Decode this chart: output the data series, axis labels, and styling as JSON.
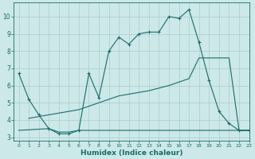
{
  "xlabel": "Humidex (Indice chaleur)",
  "xlim": [
    -0.5,
    23
  ],
  "ylim": [
    2.8,
    10.8
  ],
  "bg_color": "#cce8e8",
  "grid_color": "#aacccc",
  "line_color": "#1a6b6b",
  "line1_x": [
    0,
    1,
    2,
    3,
    4,
    5,
    6,
    7,
    8,
    9,
    10,
    11,
    12,
    13,
    14,
    15,
    16,
    17,
    18,
    19,
    20,
    21,
    22,
    23
  ],
  "line1_y": [
    6.7,
    5.2,
    4.3,
    3.5,
    3.2,
    3.2,
    3.4,
    6.7,
    5.3,
    8.0,
    8.8,
    8.4,
    9.0,
    9.1,
    9.1,
    10.0,
    9.9,
    10.4,
    8.5,
    6.3,
    4.5,
    3.8,
    3.4,
    3.4
  ],
  "line2_x": [
    1,
    2,
    3,
    4,
    5,
    6,
    7,
    8,
    9,
    10,
    11,
    12,
    13,
    14,
    15,
    16,
    17,
    18,
    19,
    20,
    21,
    22,
    23
  ],
  "line2_y": [
    4.1,
    4.2,
    4.3,
    4.4,
    4.5,
    4.6,
    4.8,
    5.0,
    5.2,
    5.4,
    5.5,
    5.6,
    5.7,
    5.85,
    6.0,
    6.2,
    6.4,
    7.6,
    7.6,
    7.6,
    7.6,
    3.4,
    3.4
  ],
  "line3_x": [
    0,
    3,
    4,
    5,
    6,
    7,
    8,
    9,
    10,
    11,
    12,
    13,
    14,
    15,
    16,
    17,
    18,
    19,
    20,
    21,
    22,
    23
  ],
  "line3_y": [
    3.4,
    3.5,
    3.3,
    3.3,
    3.4,
    3.4,
    3.4,
    3.4,
    3.4,
    3.4,
    3.4,
    3.4,
    3.4,
    3.4,
    3.4,
    3.4,
    3.4,
    3.4,
    3.4,
    3.4,
    3.4,
    3.4
  ],
  "yticks": [
    3,
    4,
    5,
    6,
    7,
    8,
    9,
    10
  ],
  "xticks": [
    0,
    1,
    2,
    3,
    4,
    5,
    6,
    7,
    8,
    9,
    10,
    11,
    12,
    13,
    14,
    15,
    16,
    17,
    18,
    19,
    20,
    21,
    22,
    23
  ]
}
